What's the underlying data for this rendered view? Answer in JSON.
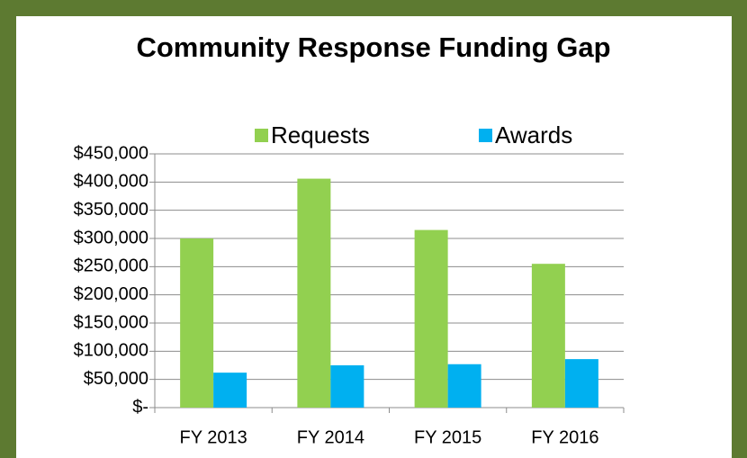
{
  "chart_data": {
    "type": "bar",
    "title": "Community Response Funding Gap",
    "categories": [
      "FY 2013",
      "FY 2014",
      "FY 2015",
      "FY 2016"
    ],
    "series": [
      {
        "name": "Requests",
        "color": "#92d050",
        "values": [
          300000,
          406000,
          315000,
          255000
        ]
      },
      {
        "name": "Awards",
        "color": "#00b0f0",
        "values": [
          62000,
          75000,
          77000,
          86000
        ]
      }
    ],
    "ylim": [
      0,
      450000
    ],
    "yticks": [
      {
        "value": 0,
        "label": "$-"
      },
      {
        "value": 50000,
        "label": "$50,000"
      },
      {
        "value": 100000,
        "label": "$100,000"
      },
      {
        "value": 150000,
        "label": "$150,000"
      },
      {
        "value": 200000,
        "label": "$200,000"
      },
      {
        "value": 250000,
        "label": "$250,000"
      },
      {
        "value": 300000,
        "label": "$300,000"
      },
      {
        "value": 350000,
        "label": "$350,000"
      },
      {
        "value": 400000,
        "label": "$400,000"
      },
      {
        "value": 450000,
        "label": "$450,000"
      }
    ],
    "grid": true,
    "legend": "top"
  }
}
